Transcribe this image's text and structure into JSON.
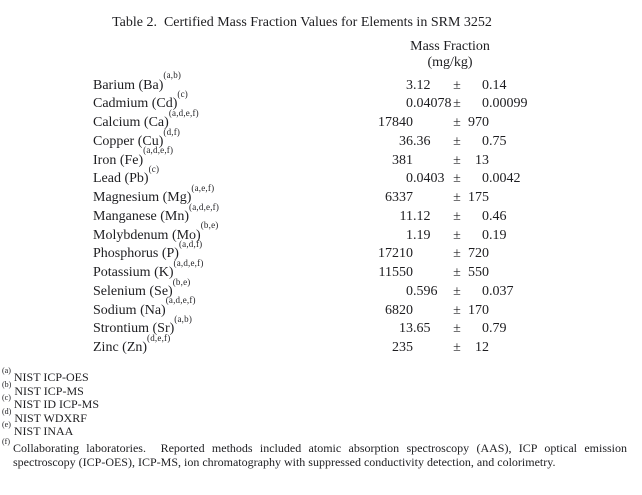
{
  "title": "Table 2.  Certified Mass Fraction Values for Elements in SRM 3252",
  "header": {
    "line1": "Mass Fraction",
    "line2": "(mg/kg)"
  },
  "pm": "±",
  "rows": [
    {
      "element": "Barium (Ba)",
      "sup": "(a,b)",
      "value": "3.12",
      "uncertainty": "0.14"
    },
    {
      "element": "Cadmium (Cd)",
      "sup": "(c)",
      "value": "0.04078",
      "uncertainty": "0.00099"
    },
    {
      "element": "Calcium (Ca)",
      "sup": "(a,d,e,f)",
      "value": "17840",
      "uncertainty": "970"
    },
    {
      "element": "Copper (Cu)",
      "sup": "(d,f)",
      "value": "36.36",
      "uncertainty": "0.75"
    },
    {
      "element": "Iron (Fe)",
      "sup": "(a,d,e,f)",
      "value": "381",
      "uncertainty": "13"
    },
    {
      "element": "Lead (Pb)",
      "sup": "(c)",
      "value": "0.0403",
      "uncertainty": "0.0042"
    },
    {
      "element": "Magnesium (Mg)",
      "sup": "(a,e,f)",
      "value": "6337",
      "uncertainty": "175"
    },
    {
      "element": "Manganese (Mn)",
      "sup": "(a,d,e,f)",
      "value": "11.12",
      "uncertainty": "0.46"
    },
    {
      "element": "Molybdenum (Mo)",
      "sup": "(b,e)",
      "value": "1.19",
      "uncertainty": "0.19"
    },
    {
      "element": "Phosphorus (P)",
      "sup": "(a,d,f)",
      "value": "17210",
      "uncertainty": "720"
    },
    {
      "element": "Potassium (K)",
      "sup": "(a,d,e,f)",
      "value": "11550",
      "uncertainty": "550"
    },
    {
      "element": "Selenium (Se)",
      "sup": "(b,e)",
      "value": "0.596",
      "uncertainty": "0.037"
    },
    {
      "element": "Sodium (Na)",
      "sup": "(a,d,e,f)",
      "value": "6820",
      "uncertainty": "170"
    },
    {
      "element": "Strontium (Sr)",
      "sup": "(a,b)",
      "value": "13.65",
      "uncertainty": "0.79"
    },
    {
      "element": "Zinc (Zn)",
      "sup": "(d,e,f)",
      "value": "235",
      "uncertainty": "12"
    }
  ],
  "footnotes": [
    {
      "marker": "(a)",
      "text": "NIST ICP-OES"
    },
    {
      "marker": "(b)",
      "text": "NIST ICP-MS"
    },
    {
      "marker": "(c)",
      "text": "NIST ID ICP-MS"
    },
    {
      "marker": "(d)",
      "text": "NIST WDXRF"
    },
    {
      "marker": "(e)",
      "text": "NIST INAA"
    },
    {
      "marker": "(f)",
      "text": "Collaborating laboratories.  Reported methods included atomic absorption spectroscopy (AAS), ICP optical emission spectroscopy (ICP-OES), ICP-MS, ion chromatography with suppressed conductivity detection, and colorimetry."
    }
  ]
}
